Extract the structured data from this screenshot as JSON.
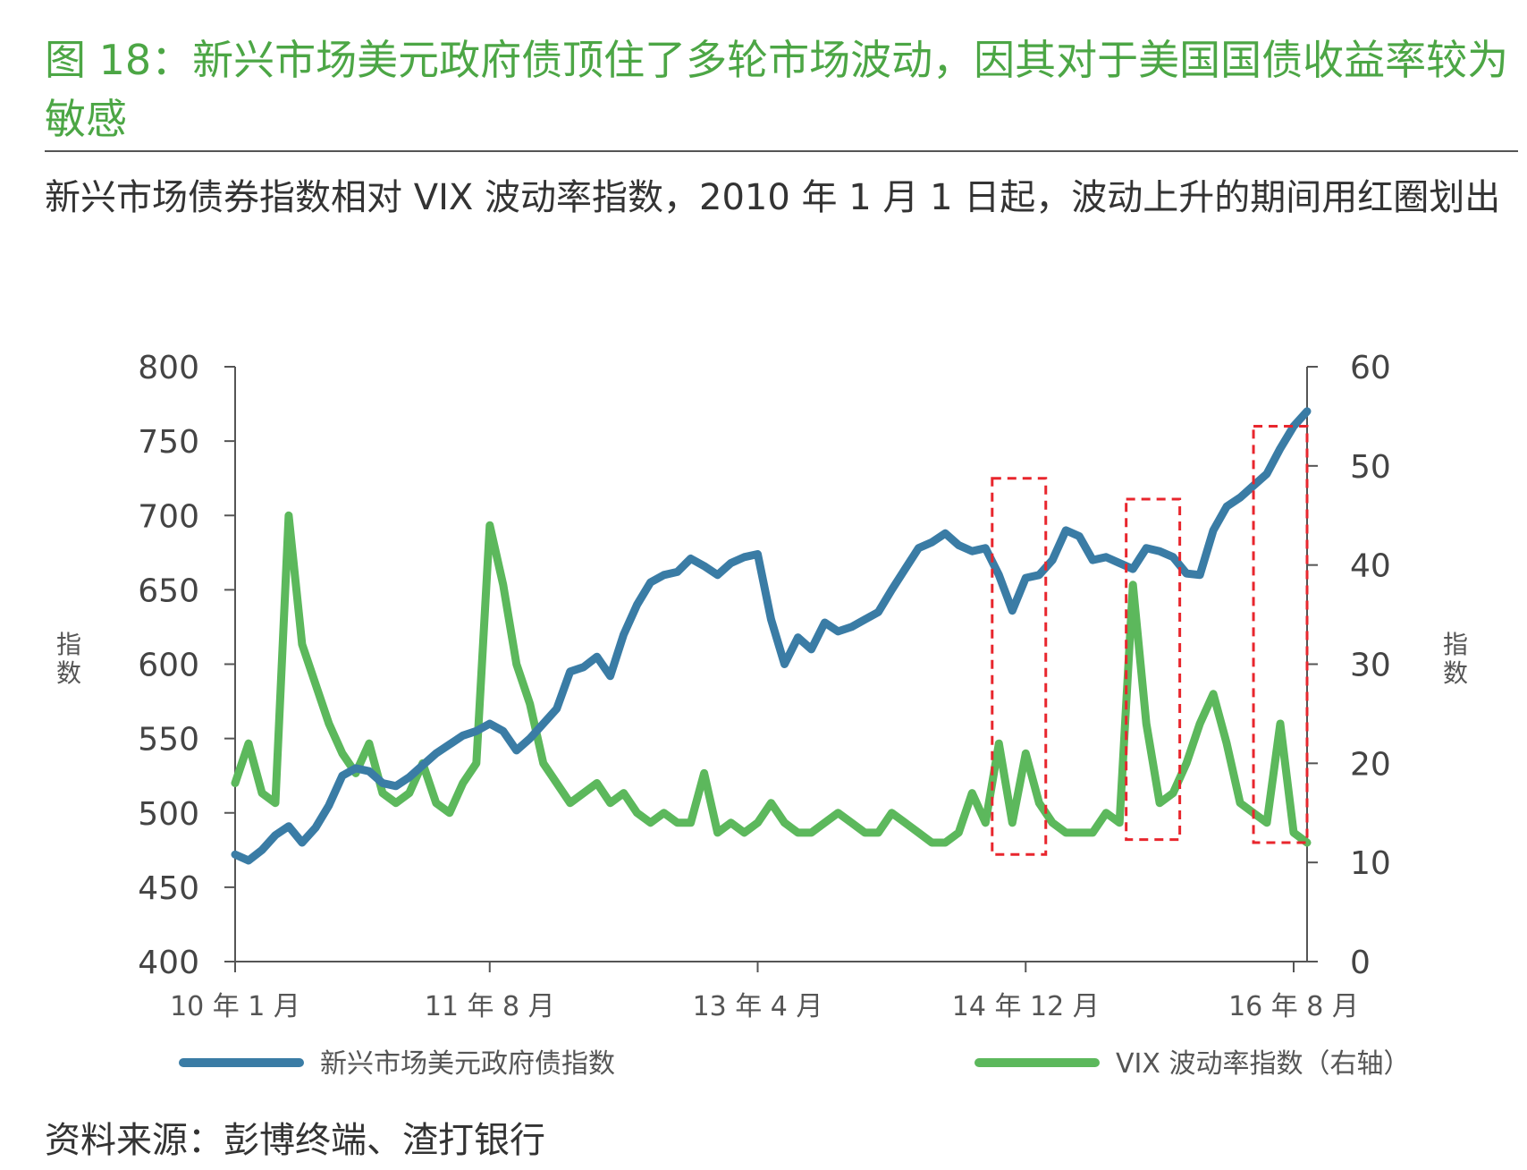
{
  "figure": {
    "title": "图 18：新兴市场美元政府债顶住了多轮市场波动，因其对于美国国债收益率较为敏感",
    "subtitle": "新兴市场债券指数相对 VIX 波动率指数，2010 年 1 月 1 日起，波动上升的期间用红圈划出",
    "source": "资料来源：彭博终端、渣打银行"
  },
  "colors": {
    "title": "#4ca645",
    "em_index": "#3a7ca5",
    "vix": "#5cb85c",
    "highlight": "#e8262d",
    "axis": "#555555"
  },
  "chart_data": {
    "type": "line",
    "x_axis": {
      "ticks": [
        "10 年 1 月",
        "11 年 8 月",
        "13 年 4 月",
        "14 年 12 月",
        "16 年 8 月"
      ],
      "tick_months": [
        0,
        19,
        39,
        59,
        79
      ],
      "range_months": [
        0,
        80
      ]
    },
    "y_left": {
      "label": "指数",
      "ticks": [
        800,
        750,
        700,
        650,
        600,
        550,
        500,
        450,
        400
      ],
      "ylim": [
        400,
        800
      ]
    },
    "y_right": {
      "label": "指数",
      "ticks": [
        60,
        50,
        40,
        30,
        20,
        10,
        0
      ],
      "ylim": [
        0,
        60
      ]
    },
    "series": [
      {
        "name": "新兴市场美元政府债指数",
        "axis": "left",
        "x": [
          0,
          1,
          2,
          3,
          4,
          5,
          6,
          7,
          8,
          9,
          10,
          11,
          12,
          13,
          14,
          15,
          16,
          17,
          18,
          19,
          20,
          21,
          22,
          23,
          24,
          25,
          26,
          27,
          28,
          29,
          30,
          31,
          32,
          33,
          34,
          35,
          36,
          37,
          38,
          39,
          40,
          41,
          42,
          43,
          44,
          45,
          46,
          47,
          48,
          49,
          50,
          51,
          52,
          53,
          54,
          55,
          56,
          57,
          58,
          59,
          60,
          61,
          62,
          63,
          64,
          65,
          66,
          67,
          68,
          69,
          70,
          71,
          72,
          73,
          74,
          75,
          76,
          77,
          78,
          79,
          80
        ],
        "values": [
          472,
          468,
          475,
          485,
          491,
          480,
          490,
          505,
          525,
          530,
          528,
          520,
          518,
          524,
          532,
          540,
          546,
          552,
          555,
          560,
          555,
          542,
          550,
          560,
          570,
          595,
          598,
          605,
          592,
          620,
          640,
          655,
          660,
          662,
          671,
          666,
          660,
          668,
          672,
          674,
          630,
          600,
          618,
          610,
          628,
          622,
          625,
          630,
          635,
          650,
          664,
          678,
          682,
          688,
          680,
          676,
          678,
          660,
          636,
          658,
          660,
          670,
          690,
          686,
          670,
          672,
          668,
          664,
          678,
          676,
          672,
          661,
          660,
          690,
          706,
          712,
          720,
          728,
          745,
          760,
          770
        ]
      },
      {
        "name": "VIX 波动率指数（右轴）",
        "axis": "right",
        "x": [
          0,
          1,
          2,
          3,
          4,
          5,
          6,
          7,
          8,
          9,
          10,
          11,
          12,
          13,
          14,
          15,
          16,
          17,
          18,
          19,
          20,
          21,
          22,
          23,
          24,
          25,
          26,
          27,
          28,
          29,
          30,
          31,
          32,
          33,
          34,
          35,
          36,
          37,
          38,
          39,
          40,
          41,
          42,
          43,
          44,
          45,
          46,
          47,
          48,
          49,
          50,
          51,
          52,
          53,
          54,
          55,
          56,
          57,
          58,
          59,
          60,
          61,
          62,
          63,
          64,
          65,
          66,
          67,
          68,
          69,
          70,
          71,
          72,
          73,
          74,
          75,
          76,
          77,
          78,
          79,
          80
        ],
        "values": [
          18,
          22,
          17,
          16,
          45,
          32,
          28,
          24,
          21,
          19,
          22,
          17,
          16,
          17,
          20,
          16,
          15,
          18,
          20,
          44,
          38,
          30,
          26,
          20,
          18,
          16,
          17,
          18,
          16,
          17,
          15,
          14,
          15,
          14,
          14,
          19,
          13,
          14,
          13,
          14,
          16,
          14,
          13,
          13,
          14,
          15,
          14,
          13,
          13,
          15,
          14,
          13,
          12,
          12,
          13,
          17,
          14,
          22,
          14,
          21,
          16,
          14,
          13,
          13,
          13,
          15,
          14,
          38,
          24,
          16,
          17,
          20,
          24,
          27,
          22,
          16,
          15,
          14,
          24,
          13,
          12
        ]
      }
    ],
    "highlights": [
      {
        "x0": 56.5,
        "x1": 60.5,
        "y0_left": 472,
        "y1_left": 725
      },
      {
        "x0": 66.5,
        "x1": 70.5,
        "y0_left": 482,
        "y1_left": 711
      },
      {
        "x0": 76,
        "x1": 80,
        "y0_left": 480,
        "y1_left": 760
      }
    ],
    "legend": [
      "新兴市场美元政府债指数",
      "VIX 波动率指数（右轴）"
    ]
  }
}
